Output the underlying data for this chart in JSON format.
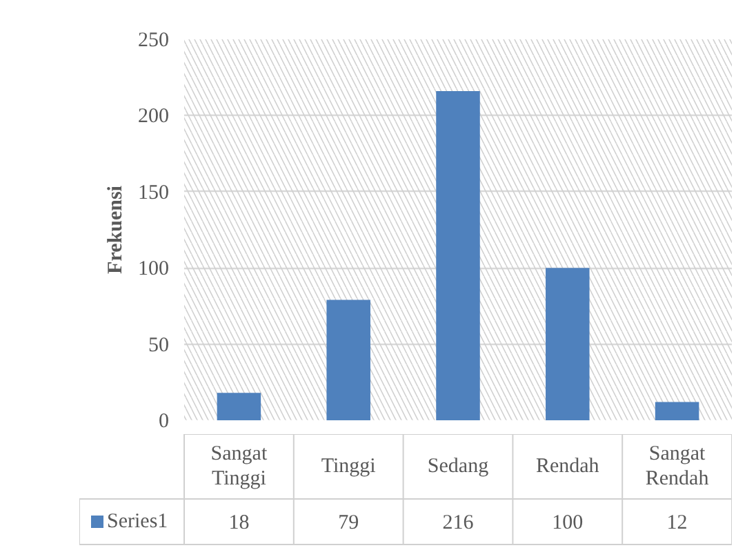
{
  "chart_data": {
    "type": "bar",
    "ylabel": "Frekuensi",
    "categories": [
      "Sangat Tinggi",
      "Tinggi",
      "Sedang",
      "Rendah",
      "Sangat Rendah"
    ],
    "series": [
      {
        "name": "Series1",
        "color": "#4f81bd",
        "values": [
          18,
          79,
          216,
          100,
          12
        ]
      }
    ],
    "ylim": [
      0,
      250
    ],
    "yticks": [
      0,
      50,
      100,
      150,
      200,
      250
    ],
    "grid": "y",
    "legend": "bottom",
    "data_labels": true
  }
}
